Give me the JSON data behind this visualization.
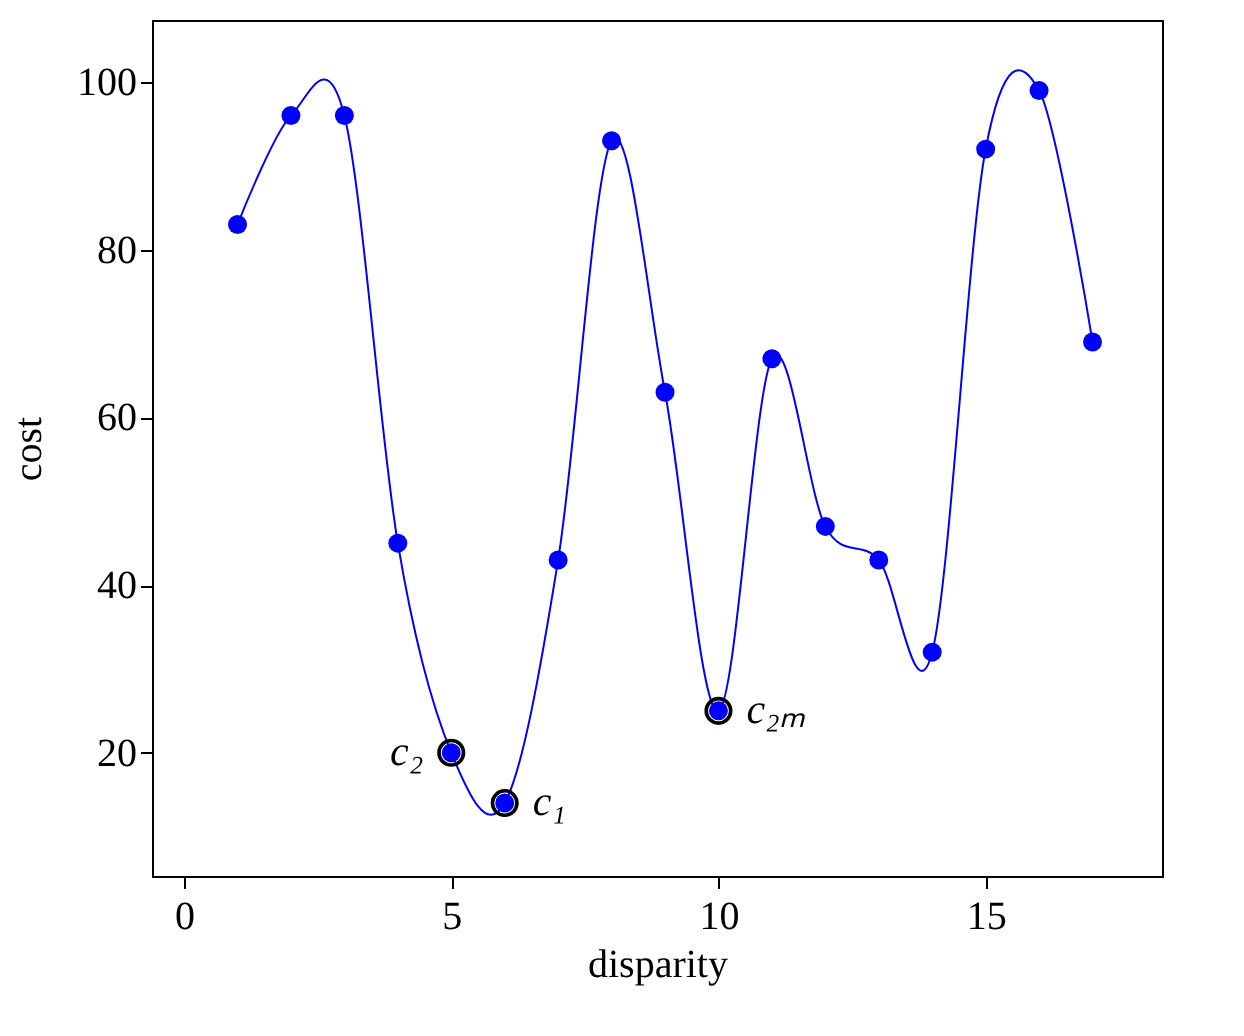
{
  "chart_data": {
    "type": "line",
    "xlabel": "disparity",
    "ylabel": "cost",
    "x": [
      1,
      2,
      3,
      4,
      5,
      6,
      7,
      8,
      9,
      10,
      11,
      12,
      13,
      14,
      15,
      16,
      17
    ],
    "series": [
      {
        "color": "#0000ff",
        "values": [
          83,
          96,
          96,
          45,
          20,
          14,
          43,
          93,
          63,
          25,
          67,
          47,
          43,
          32,
          92,
          99,
          69
        ]
      }
    ],
    "marker": "circle",
    "line_style": "solid",
    "grid": false,
    "xlim": [
      -0.6,
      18.3
    ],
    "ylim": [
      5.3,
      107.4
    ],
    "xticks": [
      0,
      5,
      10,
      15
    ],
    "yticks": [
      20,
      40,
      60,
      80,
      100
    ],
    "annotations": [
      {
        "text": "c₂",
        "x": 5,
        "y": 20
      },
      {
        "text": "c₁",
        "x": 6,
        "y": 14
      },
      {
        "text": "c₂ₘ",
        "x": 10,
        "y": 25
      }
    ]
  }
}
